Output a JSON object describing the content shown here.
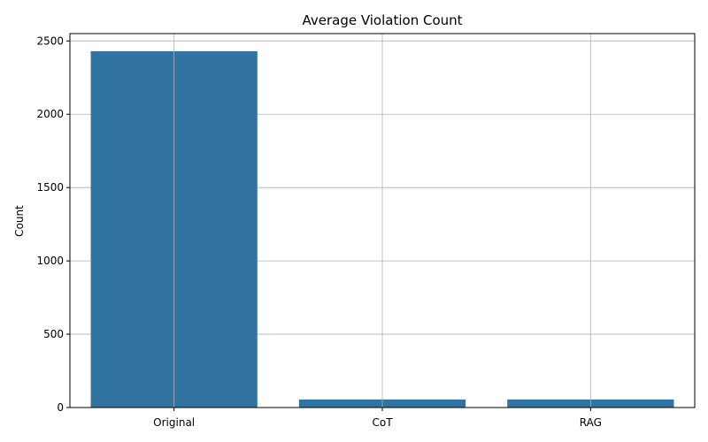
{
  "chart_data": {
    "type": "bar",
    "title": "Average Violation Count",
    "xlabel": "",
    "ylabel": "Count",
    "categories": [
      "Original",
      "CoT",
      "RAG"
    ],
    "values": [
      2430,
      55,
      55
    ],
    "ylim": [
      0,
      2550
    ],
    "yticks": [
      0,
      500,
      1000,
      1500,
      2000,
      2500
    ],
    "grid": true,
    "bar_color": "#3274a1",
    "grid_color": "#b0b0b0"
  }
}
